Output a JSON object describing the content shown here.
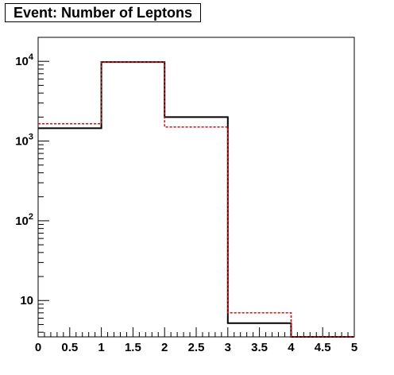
{
  "chart_data": {
    "type": "line",
    "title": "Event: Number of Leptons",
    "xlabel": "",
    "ylabel": "",
    "x_scale": "linear",
    "y_scale": "log",
    "xlim": [
      0,
      5
    ],
    "ylim": [
      3.5,
      20000
    ],
    "grid": false,
    "legend": "none",
    "x_ticks": [
      "0",
      "0.5",
      "1",
      "1.5",
      "2",
      "2.5",
      "3",
      "3.5",
      "4",
      "4.5",
      "5"
    ],
    "y_ticks": [
      {
        "value": 10,
        "base": "10",
        "exp": ""
      },
      {
        "value": 100,
        "base": "10",
        "exp": "2"
      },
      {
        "value": 1000,
        "base": "10",
        "exp": "3"
      },
      {
        "value": 10000,
        "base": "10",
        "exp": "4"
      }
    ],
    "bin_edges": [
      0,
      1,
      2,
      3,
      4,
      5
    ],
    "series": [
      {
        "style": "solid",
        "color": "#000000",
        "values": [
          1450,
          9800,
          2000,
          5.2,
          3.5
        ]
      },
      {
        "style": "dashed",
        "color": "#ff0000",
        "values": [
          1650,
          9800,
          1500,
          7.0,
          3.5
        ]
      }
    ]
  }
}
